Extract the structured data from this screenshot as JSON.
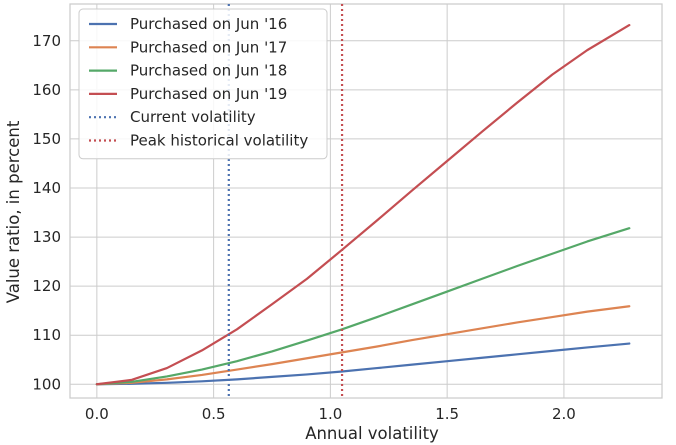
{
  "chart_data": {
    "type": "line",
    "xlabel": "Annual volatility",
    "ylabel": "Value ratio, in percent",
    "xlim": [
      -0.115,
      2.42
    ],
    "ylim": [
      97.2,
      177.5
    ],
    "xticks": [
      0.0,
      0.5,
      1.0,
      1.5,
      2.0
    ],
    "xtick_labels": [
      "0.0",
      "0.5",
      "1.0",
      "1.5",
      "2.0"
    ],
    "yticks": [
      100,
      110,
      120,
      130,
      140,
      150,
      160,
      170
    ],
    "ytick_labels": [
      "100",
      "110",
      "120",
      "130",
      "140",
      "150",
      "160",
      "170"
    ],
    "grid": true,
    "legend_position": "upper-left",
    "x": [
      0.0,
      0.15,
      0.3,
      0.45,
      0.6,
      0.75,
      0.9,
      1.05,
      1.2,
      1.35,
      1.5,
      1.65,
      1.8,
      1.95,
      2.1,
      2.28
    ],
    "series": [
      {
        "name": "Purchased on Jun '16",
        "color": "#4c72b0",
        "values": [
          100.0,
          100.1,
          100.3,
          100.6,
          101.0,
          101.5,
          102.0,
          102.6,
          103.3,
          104.0,
          104.7,
          105.4,
          106.1,
          106.8,
          107.5,
          108.3
        ]
      },
      {
        "name": "Purchased on Jun '17",
        "color": "#dd8452",
        "values": [
          100.0,
          100.3,
          101.0,
          101.9,
          103.0,
          104.1,
          105.3,
          106.5,
          107.7,
          109.0,
          110.2,
          111.4,
          112.6,
          113.7,
          114.8,
          115.9
        ]
      },
      {
        "name": "Purchased on Jun '18",
        "color": "#55a868",
        "values": [
          100.0,
          100.5,
          101.6,
          103.0,
          104.7,
          106.7,
          108.9,
          111.2,
          113.7,
          116.3,
          118.9,
          121.5,
          124.1,
          126.6,
          129.1,
          131.8
        ]
      },
      {
        "name": "Purchased on Jun '19",
        "color": "#c44e52",
        "values": [
          100.0,
          100.9,
          103.3,
          106.9,
          111.2,
          116.3,
          121.5,
          127.4,
          133.4,
          139.5,
          145.5,
          151.5,
          157.4,
          163.1,
          168.1,
          173.2
        ]
      }
    ],
    "vlines": [
      {
        "name": "Current volatility",
        "x": 0.565,
        "color": "#4c72b0",
        "style": "dotted"
      },
      {
        "name": "Peak historical volatility",
        "x": 1.05,
        "color": "#c44e52",
        "style": "dotted"
      }
    ]
  }
}
